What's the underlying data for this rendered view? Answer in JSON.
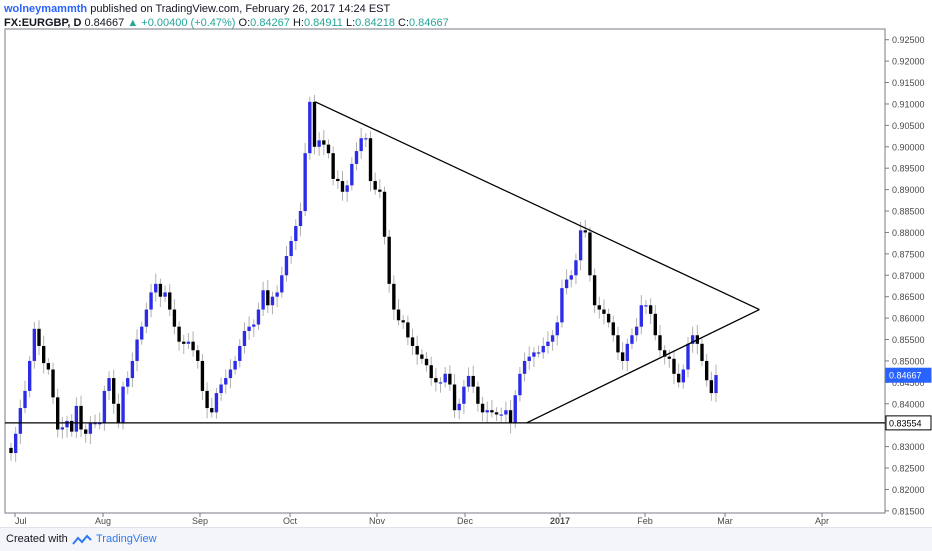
{
  "header": {
    "author": "wolneymammth",
    "published": "published on TradingView.com, February 26, 2017 14:24 EST",
    "symbol": "FX:EURGBP, D",
    "last": "0.84667",
    "change": "+0.00400 (+0.47%)",
    "o_label": "O:",
    "o": "0.84267",
    "h_label": "H:",
    "h": "0.84911",
    "l_label": "L:",
    "l": "0.84218",
    "c_label": "C:",
    "c": "0.84667"
  },
  "footer": {
    "created": "Created with",
    "brand": "TradingView"
  },
  "colors": {
    "up": "#2b2be8",
    "down": "#000000",
    "wick": "#b0b0b0",
    "price_tag": "#2962ff"
  },
  "chart_data": {
    "type": "candlestick",
    "y_ticks": [
      "0.92500",
      "0.92000",
      "0.91500",
      "0.91000",
      "0.90500",
      "0.90000",
      "0.89500",
      "0.89000",
      "0.88500",
      "0.88000",
      "0.87500",
      "0.87000",
      "0.86500",
      "0.86000",
      "0.85500",
      "0.85000",
      "0.84500",
      "0.84000",
      "0.83500",
      "0.83000",
      "0.82500",
      "0.82000",
      "0.81500"
    ],
    "x_ticks": [
      "Jul",
      "Aug",
      "Sep",
      "Oct",
      "Nov",
      "Dec",
      "2017",
      "Feb",
      "Mar",
      "Apr"
    ],
    "ylim": [
      0.8145,
      0.9275
    ],
    "support_label": "0.83554",
    "last_label": "0.84667",
    "lines": [
      {
        "name": "upper-trendline",
        "from": [
          "2016-10-10",
          0.9105
        ],
        "to": [
          "2017-03-12",
          0.862
        ]
      },
      {
        "name": "lower-trendline",
        "from": [
          "2016-12-21",
          0.8355
        ],
        "to": [
          "2017-03-12",
          0.862
        ]
      },
      {
        "name": "support-line",
        "value": 0.83554
      }
    ],
    "closes": [
      0.8285,
      0.833,
      0.839,
      0.843,
      0.85,
      0.8575,
      0.8535,
      0.8495,
      0.848,
      0.8415,
      0.834,
      0.8345,
      0.836,
      0.8335,
      0.8395,
      0.834,
      0.833,
      0.8355,
      0.8355,
      0.8355,
      0.843,
      0.846,
      0.84,
      0.8355,
      0.844,
      0.846,
      0.85,
      0.855,
      0.858,
      0.862,
      0.866,
      0.868,
      0.865,
      0.866,
      0.862,
      0.858,
      0.8545,
      0.854,
      0.8545,
      0.8525,
      0.85,
      0.843,
      0.839,
      0.838,
      0.8425,
      0.8445,
      0.846,
      0.848,
      0.85,
      0.8535,
      0.857,
      0.858,
      0.8585,
      0.862,
      0.8665,
      0.863,
      0.865,
      0.866,
      0.87,
      0.8745,
      0.878,
      0.8815,
      0.885,
      0.8985,
      0.9105,
      0.9,
      0.9015,
      0.9005,
      0.8985,
      0.8925,
      0.892,
      0.8895,
      0.891,
      0.896,
      0.899,
      0.902,
      0.902,
      0.892,
      0.89,
      0.8895,
      0.879,
      0.868,
      0.862,
      0.8595,
      0.859,
      0.8555,
      0.8535,
      0.8515,
      0.8505,
      0.849,
      0.846,
      0.845,
      0.845,
      0.847,
      0.8445,
      0.8385,
      0.84,
      0.844,
      0.8465,
      0.844,
      0.84,
      0.838,
      0.8385,
      0.838,
      0.8375,
      0.8375,
      0.8385,
      0.8355,
      0.842,
      0.847,
      0.85,
      0.851,
      0.852,
      0.852,
      0.8535,
      0.8545,
      0.856,
      0.859,
      0.867,
      0.869,
      0.87,
      0.8735,
      0.8805,
      0.88,
      0.87,
      0.863,
      0.862,
      0.861,
      0.859,
      0.856,
      0.852,
      0.85,
      0.854,
      0.856,
      0.858,
      0.863,
      0.863,
      0.861,
      0.856,
      0.8525,
      0.851,
      0.8505,
      0.847,
      0.845,
      0.848,
      0.854,
      0.856,
      0.854,
      0.85,
      0.8455,
      0.8425,
      0.8467
    ]
  }
}
